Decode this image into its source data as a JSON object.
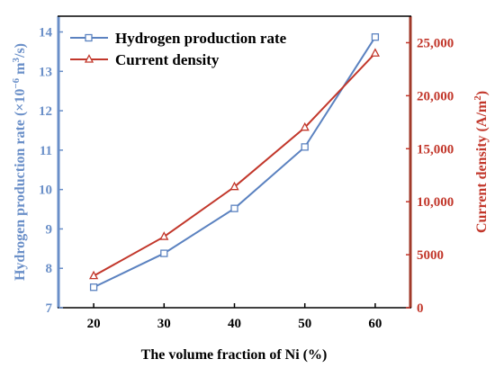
{
  "chart_data": {
    "type": "line",
    "xlabel": "The volume fraction of Ni (%)",
    "x": [
      20,
      30,
      40,
      50,
      60
    ],
    "xlim": [
      15,
      65
    ],
    "xticks": [
      "20",
      "30",
      "40",
      "50",
      "60"
    ],
    "y_left": {
      "label_main": "Hydrogen production rate (×10",
      "label_exp": "−6",
      "label_unit": " m",
      "label_unit_exp": "3",
      "label_end": "/s)",
      "lim": [
        7,
        14.4
      ],
      "ticks": [
        "7",
        "8",
        "9",
        "10",
        "11",
        "12",
        "13",
        "14"
      ],
      "color": "#6a8fc8"
    },
    "y_right": {
      "label_main": "Current density (A/m",
      "label_exp": "2",
      "label_end": ")",
      "lim": [
        0,
        27500
      ],
      "ticks": [
        "0",
        "5000",
        "10,000",
        "15,000",
        "20,000",
        "25,000"
      ],
      "color": "#c2372b"
    },
    "series": [
      {
        "name": "Hydrogen production rate",
        "axis": "left",
        "marker": "square",
        "color": "#5b82c0",
        "values": [
          7.52,
          8.38,
          9.52,
          11.08,
          13.87
        ]
      },
      {
        "name": "Current density",
        "axis": "right",
        "marker": "triangle",
        "color": "#c2372b",
        "values": [
          3000,
          6700,
          11400,
          17000,
          24000
        ]
      }
    ],
    "legend": "top-left",
    "grid": false
  }
}
